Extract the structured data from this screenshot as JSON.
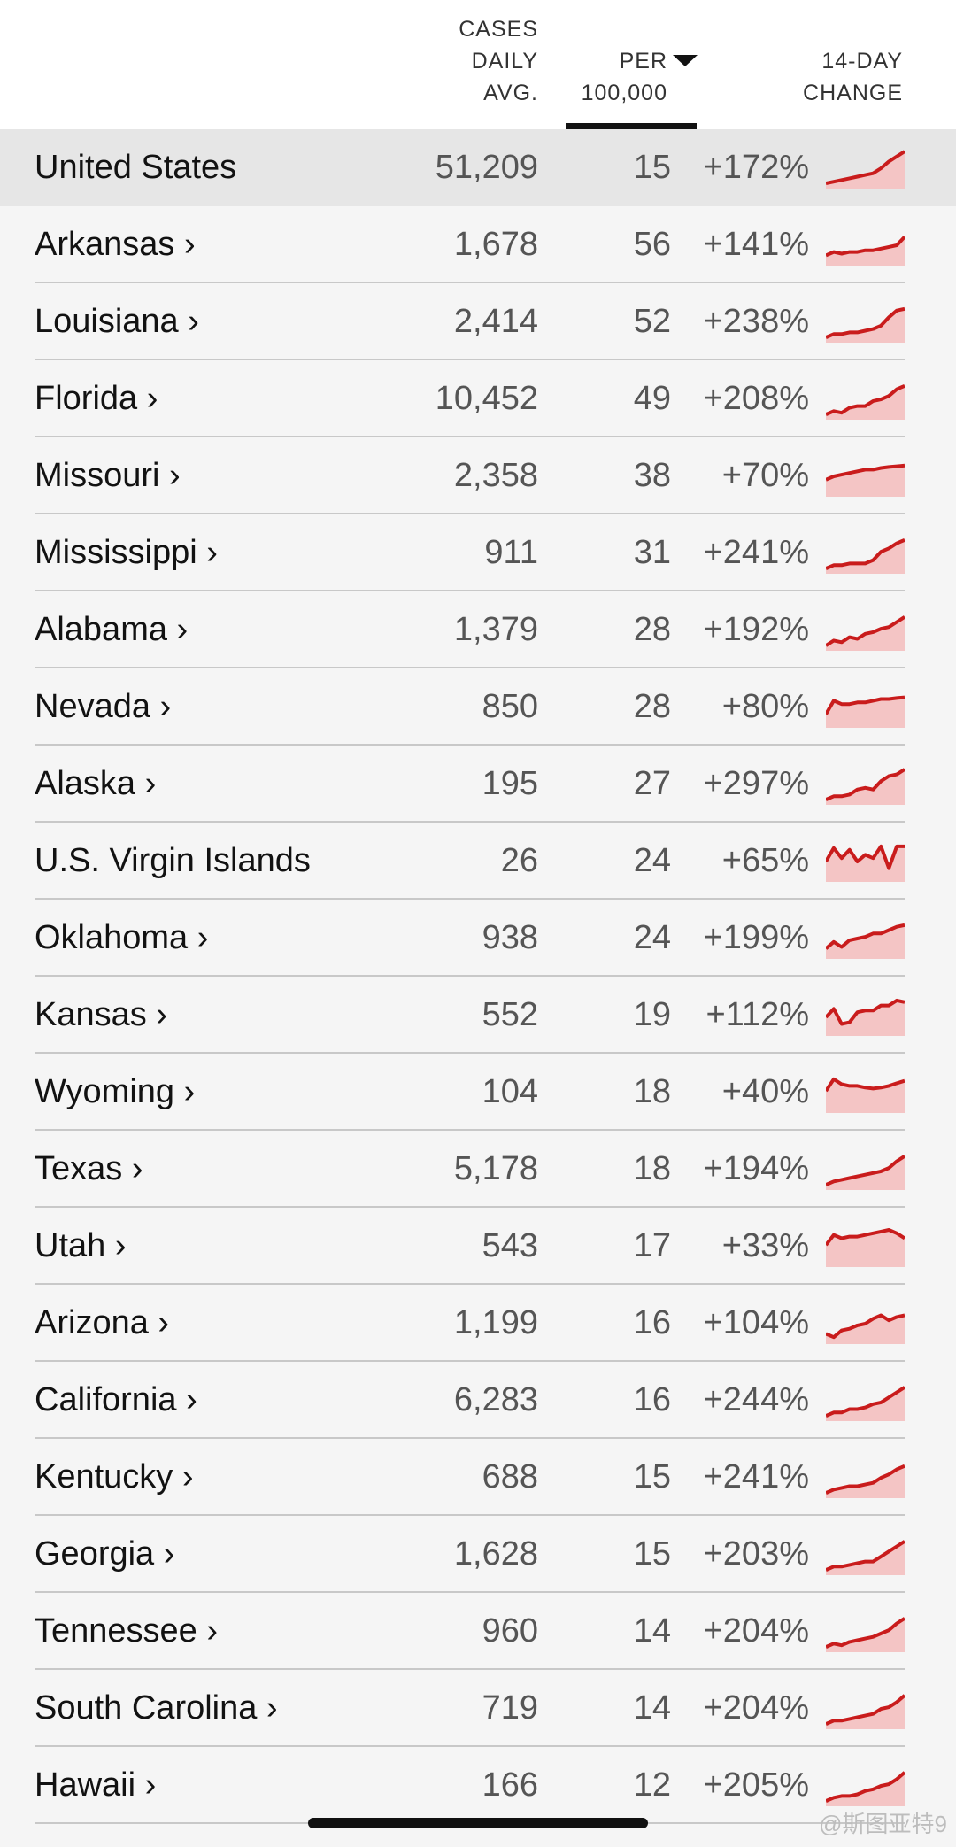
{
  "colors": {
    "accent": "#c91c1c",
    "fill": "#f4c5c5",
    "highlight_row": "#e6e6e6"
  },
  "header": {
    "cases_lines": [
      "CASES",
      "DAILY",
      "AVG."
    ],
    "per_lines": [
      "PER",
      "100,000"
    ],
    "change_lines": [
      "14-DAY",
      "CHANGE"
    ],
    "sort_icon": "caret-down-icon"
  },
  "rows": [
    {
      "name": "United States",
      "cases": "51,209",
      "per": "15",
      "change": "+172%",
      "trend": [
        0.05,
        0.1,
        0.15,
        0.2,
        0.25,
        0.3,
        0.35,
        0.5,
        0.7,
        0.85,
        1.0
      ]
    },
    {
      "name": "Arkansas ›",
      "cases": "1,678",
      "per": "56",
      "change": "+141%",
      "trend": [
        0.2,
        0.3,
        0.25,
        0.3,
        0.3,
        0.35,
        0.35,
        0.4,
        0.45,
        0.5,
        0.75
      ]
    },
    {
      "name": "Louisiana ›",
      "cases": "2,414",
      "per": "52",
      "change": "+238%",
      "trend": [
        0.05,
        0.15,
        0.15,
        0.2,
        0.2,
        0.25,
        0.3,
        0.4,
        0.65,
        0.85,
        0.9
      ]
    },
    {
      "name": "Florida ›",
      "cases": "10,452",
      "per": "49",
      "change": "+208%",
      "trend": [
        0.05,
        0.15,
        0.1,
        0.25,
        0.3,
        0.3,
        0.45,
        0.5,
        0.6,
        0.8,
        0.9
      ]
    },
    {
      "name": "Missouri ›",
      "cases": "2,358",
      "per": "38",
      "change": "+70%",
      "trend": [
        0.4,
        0.5,
        0.55,
        0.6,
        0.65,
        0.7,
        0.7,
        0.75,
        0.78,
        0.8,
        0.82
      ]
    },
    {
      "name": "Mississippi ›",
      "cases": "911",
      "per": "31",
      "change": "+241%",
      "trend": [
        0.05,
        0.15,
        0.15,
        0.2,
        0.2,
        0.2,
        0.3,
        0.55,
        0.65,
        0.8,
        0.9
      ]
    },
    {
      "name": "Alabama ›",
      "cases": "1,379",
      "per": "28",
      "change": "+192%",
      "trend": [
        0.05,
        0.2,
        0.15,
        0.3,
        0.25,
        0.4,
        0.45,
        0.55,
        0.6,
        0.75,
        0.9
      ]
    },
    {
      "name": "Nevada ›",
      "cases": "850",
      "per": "28",
      "change": "+80%",
      "trend": [
        0.3,
        0.7,
        0.6,
        0.6,
        0.65,
        0.65,
        0.7,
        0.75,
        0.75,
        0.78,
        0.8
      ]
    },
    {
      "name": "Alaska ›",
      "cases": "195",
      "per": "27",
      "change": "+297%",
      "trend": [
        0.05,
        0.15,
        0.15,
        0.2,
        0.35,
        0.4,
        0.35,
        0.6,
        0.75,
        0.8,
        0.95
      ]
    },
    {
      "name": "U.S. Virgin Islands",
      "cases": "26",
      "per": "24",
      "change": "+65%",
      "trend": [
        0.5,
        0.9,
        0.6,
        0.85,
        0.5,
        0.7,
        0.6,
        0.95,
        0.3,
        0.95,
        0.95
      ]
    },
    {
      "name": "Oklahoma ›",
      "cases": "938",
      "per": "24",
      "change": "+199%",
      "trend": [
        0.2,
        0.4,
        0.25,
        0.45,
        0.5,
        0.55,
        0.65,
        0.65,
        0.75,
        0.85,
        0.9
      ]
    },
    {
      "name": "Kansas ›",
      "cases": "552",
      "per": "19",
      "change": "+112%",
      "trend": [
        0.45,
        0.7,
        0.25,
        0.3,
        0.6,
        0.65,
        0.65,
        0.8,
        0.8,
        0.95,
        0.9
      ]
    },
    {
      "name": "Wyoming ›",
      "cases": "104",
      "per": "18",
      "change": "+40%",
      "trend": [
        0.55,
        0.9,
        0.75,
        0.7,
        0.7,
        0.65,
        0.62,
        0.65,
        0.7,
        0.78,
        0.85
      ]
    },
    {
      "name": "Texas ›",
      "cases": "5,178",
      "per": "18",
      "change": "+194%",
      "trend": [
        0.05,
        0.15,
        0.2,
        0.25,
        0.3,
        0.35,
        0.4,
        0.45,
        0.55,
        0.75,
        0.9
      ]
    },
    {
      "name": "Utah ›",
      "cases": "543",
      "per": "17",
      "change": "+33%",
      "trend": [
        0.55,
        0.85,
        0.75,
        0.8,
        0.8,
        0.85,
        0.9,
        0.95,
        1.0,
        0.9,
        0.75
      ]
    },
    {
      "name": "Arizona ›",
      "cases": "1,199",
      "per": "16",
      "change": "+104%",
      "trend": [
        0.2,
        0.1,
        0.3,
        0.35,
        0.45,
        0.5,
        0.65,
        0.75,
        0.6,
        0.7,
        0.75
      ]
    },
    {
      "name": "California ›",
      "cases": "6,283",
      "per": "16",
      "change": "+244%",
      "trend": [
        0.05,
        0.15,
        0.15,
        0.25,
        0.25,
        0.3,
        0.4,
        0.45,
        0.6,
        0.75,
        0.9
      ]
    },
    {
      "name": "Kentucky ›",
      "cases": "688",
      "per": "15",
      "change": "+241%",
      "trend": [
        0.05,
        0.15,
        0.2,
        0.25,
        0.25,
        0.3,
        0.35,
        0.5,
        0.6,
        0.75,
        0.85
      ]
    },
    {
      "name": "Georgia ›",
      "cases": "1,628",
      "per": "15",
      "change": "+203%",
      "trend": [
        0.05,
        0.15,
        0.15,
        0.2,
        0.25,
        0.3,
        0.3,
        0.45,
        0.6,
        0.75,
        0.9
      ]
    },
    {
      "name": "Tennessee ›",
      "cases": "960",
      "per": "14",
      "change": "+204%",
      "trend": [
        0.05,
        0.15,
        0.1,
        0.2,
        0.25,
        0.3,
        0.35,
        0.45,
        0.55,
        0.75,
        0.9
      ]
    },
    {
      "name": "South Carolina ›",
      "cases": "719",
      "per": "14",
      "change": "+204%",
      "trend": [
        0.05,
        0.15,
        0.15,
        0.2,
        0.25,
        0.3,
        0.35,
        0.5,
        0.55,
        0.7,
        0.9
      ]
    },
    {
      "name": "Hawaii ›",
      "cases": "166",
      "per": "12",
      "change": "+205%",
      "trend": [
        0.05,
        0.15,
        0.2,
        0.2,
        0.25,
        0.35,
        0.4,
        0.5,
        0.55,
        0.7,
        0.9
      ]
    }
  ],
  "watermark": "@斯图亚特9"
}
